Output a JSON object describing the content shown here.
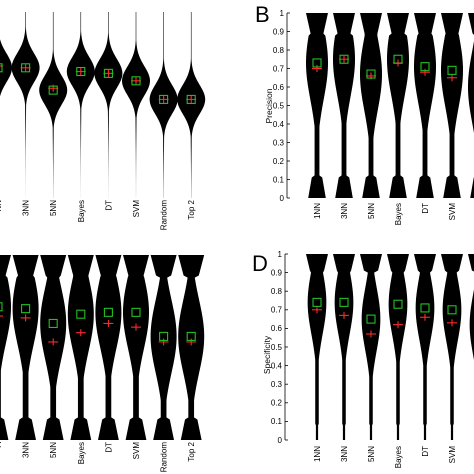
{
  "chart_data": [
    {
      "panel": "A",
      "type": "violin",
      "letter": "",
      "ylabel": "",
      "ylim": [
        0,
        1
      ],
      "categories": [
        "NN",
        "3NN",
        "5NN",
        "Bayes",
        "DT",
        "SVM",
        "Random",
        "Top 2"
      ],
      "means": [
        0.7,
        0.7,
        0.58,
        0.68,
        0.67,
        0.63,
        0.53,
        0.53
      ],
      "medians": [
        0.71,
        0.7,
        0.59,
        0.68,
        0.67,
        0.63,
        0.53,
        0.53
      ]
    },
    {
      "panel": "B",
      "type": "violin",
      "letter": "B",
      "ylabel": "Precision",
      "ylim": [
        0,
        1
      ],
      "yticks": [
        "0",
        "0.1",
        "0.2",
        "0.3",
        "0.4",
        "0.5",
        "0.6",
        "0.7",
        "0.8",
        "0.9",
        "1"
      ],
      "categories": [
        "1NN",
        "3NN",
        "5NN",
        "Bayes",
        "DT",
        "SVM",
        "Ra"
      ],
      "means": [
        0.73,
        0.75,
        0.67,
        0.75,
        0.71,
        0.69,
        0.6
      ],
      "medians": [
        0.7,
        0.75,
        0.66,
        0.73,
        0.68,
        0.65,
        0.6
      ]
    },
    {
      "panel": "C",
      "type": "violin",
      "letter": "",
      "ylabel": "",
      "ylim": [
        0,
        1
      ],
      "categories": [
        "A",
        "3NN",
        "5NN",
        "Bayes",
        "DT",
        "SVM",
        "Random",
        "Top 2"
      ],
      "means": [
        0.72,
        0.71,
        0.63,
        0.68,
        0.69,
        0.69,
        0.56,
        0.56
      ],
      "medians": [
        0.67,
        0.66,
        0.53,
        0.58,
        0.63,
        0.61,
        0.53,
        0.53
      ]
    },
    {
      "panel": "D",
      "type": "violin",
      "letter": "D",
      "ylabel": "Specificity",
      "ylim": [
        0,
        1
      ],
      "yticks": [
        "0",
        "0.1",
        "0.2",
        "0.3",
        "0.4",
        "0.5",
        "0.6",
        "0.7",
        "0.8",
        "0.9",
        "1"
      ],
      "categories": [
        "1NN",
        "3NN",
        "5NN",
        "Bayes",
        "DT",
        "SVM",
        "Ra"
      ],
      "means": [
        0.74,
        0.74,
        0.65,
        0.73,
        0.71,
        0.7,
        0.62
      ],
      "medians": [
        0.7,
        0.67,
        0.57,
        0.62,
        0.66,
        0.63,
        0.6
      ]
    }
  ]
}
